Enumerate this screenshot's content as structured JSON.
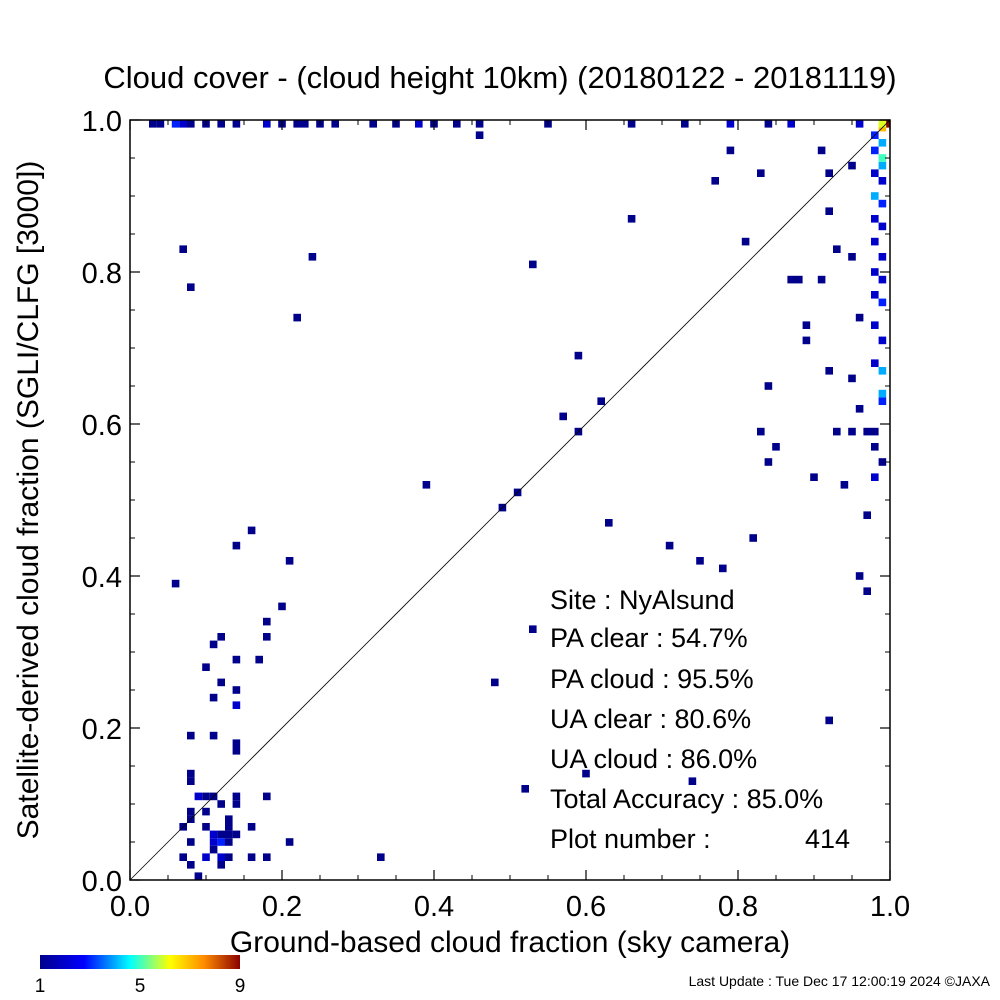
{
  "chart_data": {
    "type": "heatmap",
    "title": "Cloud cover - (cloud height 10km)  (20180122 - 20181119)",
    "xlabel": "Ground-based cloud fraction (sky camera)",
    "ylabel": "Satellite-derived cloud fraction (SGLI/CLFG [3000])",
    "xlim": [
      0,
      1
    ],
    "ylim": [
      0,
      1
    ],
    "x_ticks": [
      "0.0",
      "0.2",
      "0.4",
      "0.6",
      "0.8",
      "1.0"
    ],
    "y_ticks": [
      "0.0",
      "0.2",
      "0.4",
      "0.6",
      "0.8",
      "1.0"
    ],
    "reference_line": "y = x",
    "grid": false,
    "bin_size": 0.01,
    "colorbar": {
      "min": 1,
      "max": 9,
      "ticks": [
        "1",
        "5",
        "9"
      ],
      "colors": [
        "#00008b",
        "#0000ff",
        "#00ffff",
        "#ffff00",
        "#ff8c00",
        "#8b0000"
      ]
    },
    "points": [
      {
        "x": 0.06,
        "y": 0.39,
        "c": 1
      },
      {
        "x": 0.07,
        "y": 0.83,
        "c": 1
      },
      {
        "x": 0.08,
        "y": 0.78,
        "c": 1
      },
      {
        "x": 0.16,
        "y": 0.46,
        "c": 1
      },
      {
        "x": 0.14,
        "y": 0.44,
        "c": 1
      },
      {
        "x": 0.21,
        "y": 0.42,
        "c": 1
      },
      {
        "x": 0.2,
        "y": 0.36,
        "c": 1
      },
      {
        "x": 0.18,
        "y": 0.34,
        "c": 1
      },
      {
        "x": 0.18,
        "y": 0.32,
        "c": 1
      },
      {
        "x": 0.11,
        "y": 0.31,
        "c": 1
      },
      {
        "x": 0.12,
        "y": 0.32,
        "c": 1
      },
      {
        "x": 0.1,
        "y": 0.28,
        "c": 1
      },
      {
        "x": 0.14,
        "y": 0.29,
        "c": 1
      },
      {
        "x": 0.17,
        "y": 0.29,
        "c": 1
      },
      {
        "x": 0.12,
        "y": 0.26,
        "c": 1
      },
      {
        "x": 0.11,
        "y": 0.24,
        "c": 1
      },
      {
        "x": 0.14,
        "y": 0.25,
        "c": 1
      },
      {
        "x": 0.14,
        "y": 0.23,
        "c": 2
      },
      {
        "x": 0.08,
        "y": 0.19,
        "c": 1
      },
      {
        "x": 0.11,
        "y": 0.19,
        "c": 1
      },
      {
        "x": 0.14,
        "y": 0.18,
        "c": 1
      },
      {
        "x": 0.14,
        "y": 0.17,
        "c": 1
      },
      {
        "x": 0.08,
        "y": 0.14,
        "c": 1
      },
      {
        "x": 0.08,
        "y": 0.13,
        "c": 1
      },
      {
        "x": 0.09,
        "y": 0.11,
        "c": 2
      },
      {
        "x": 0.1,
        "y": 0.11,
        "c": 1
      },
      {
        "x": 0.11,
        "y": 0.11,
        "c": 1
      },
      {
        "x": 0.14,
        "y": 0.11,
        "c": 1
      },
      {
        "x": 0.14,
        "y": 0.1,
        "c": 1
      },
      {
        "x": 0.18,
        "y": 0.11,
        "c": 1
      },
      {
        "x": 0.08,
        "y": 0.09,
        "c": 1
      },
      {
        "x": 0.1,
        "y": 0.09,
        "c": 1
      },
      {
        "x": 0.12,
        "y": 0.1,
        "c": 1
      },
      {
        "x": 0.07,
        "y": 0.07,
        "c": 1
      },
      {
        "x": 0.08,
        "y": 0.08,
        "c": 1
      },
      {
        "x": 0.1,
        "y": 0.07,
        "c": 1
      },
      {
        "x": 0.13,
        "y": 0.08,
        "c": 1
      },
      {
        "x": 0.13,
        "y": 0.07,
        "c": 1
      },
      {
        "x": 0.11,
        "y": 0.06,
        "c": 2
      },
      {
        "x": 0.12,
        "y": 0.06,
        "c": 1
      },
      {
        "x": 0.13,
        "y": 0.06,
        "c": 1
      },
      {
        "x": 0.16,
        "y": 0.07,
        "c": 1
      },
      {
        "x": 0.08,
        "y": 0.05,
        "c": 1
      },
      {
        "x": 0.11,
        "y": 0.05,
        "c": 2
      },
      {
        "x": 0.12,
        "y": 0.05,
        "c": 3
      },
      {
        "x": 0.13,
        "y": 0.05,
        "c": 1
      },
      {
        "x": 0.14,
        "y": 0.06,
        "c": 1
      },
      {
        "x": 0.21,
        "y": 0.05,
        "c": 1
      },
      {
        "x": 0.07,
        "y": 0.03,
        "c": 1
      },
      {
        "x": 0.08,
        "y": 0.02,
        "c": 1
      },
      {
        "x": 0.1,
        "y": 0.03,
        "c": 2
      },
      {
        "x": 0.11,
        "y": 0.04,
        "c": 1
      },
      {
        "x": 0.12,
        "y": 0.03,
        "c": 2
      },
      {
        "x": 0.13,
        "y": 0.03,
        "c": 1
      },
      {
        "x": 0.16,
        "y": 0.03,
        "c": 1
      },
      {
        "x": 0.18,
        "y": 0.03,
        "c": 1
      },
      {
        "x": 0.12,
        "y": 0.02,
        "c": 1
      },
      {
        "x": 0.09,
        "y": 0.0,
        "c": 1
      },
      {
        "x": 0.33,
        "y": 0.03,
        "c": 1
      },
      {
        "x": 0.22,
        "y": 0.74,
        "c": 1
      },
      {
        "x": 0.24,
        "y": 0.82,
        "c": 1
      },
      {
        "x": 0.39,
        "y": 0.52,
        "c": 1
      },
      {
        "x": 0.49,
        "y": 0.49,
        "c": 1
      },
      {
        "x": 0.51,
        "y": 0.51,
        "c": 1
      },
      {
        "x": 0.53,
        "y": 0.81,
        "c": 1
      },
      {
        "x": 0.57,
        "y": 0.61,
        "c": 1
      },
      {
        "x": 0.59,
        "y": 0.69,
        "c": 1
      },
      {
        "x": 0.59,
        "y": 0.59,
        "c": 1
      },
      {
        "x": 0.62,
        "y": 0.63,
        "c": 1
      },
      {
        "x": 0.63,
        "y": 0.47,
        "c": 1
      },
      {
        "x": 0.66,
        "y": 0.87,
        "c": 1
      },
      {
        "x": 0.71,
        "y": 0.44,
        "c": 1
      },
      {
        "x": 0.75,
        "y": 0.42,
        "c": 1
      },
      {
        "x": 0.78,
        "y": 0.41,
        "c": 1
      },
      {
        "x": 0.82,
        "y": 0.45,
        "c": 1
      },
      {
        "x": 0.46,
        "y": 0.98,
        "c": 1
      },
      {
        "x": 0.53,
        "y": 0.33,
        "c": 1
      },
      {
        "x": 0.48,
        "y": 0.26,
        "c": 1
      },
      {
        "x": 0.52,
        "y": 0.12,
        "c": 1
      },
      {
        "x": 0.6,
        "y": 0.14,
        "c": 1
      },
      {
        "x": 0.74,
        "y": 0.13,
        "c": 1
      },
      {
        "x": 0.92,
        "y": 0.21,
        "c": 1
      },
      {
        "x": 0.77,
        "y": 0.92,
        "c": 1
      },
      {
        "x": 0.79,
        "y": 0.96,
        "c": 1
      },
      {
        "x": 0.81,
        "y": 0.84,
        "c": 1
      },
      {
        "x": 0.83,
        "y": 0.93,
        "c": 1
      },
      {
        "x": 0.84,
        "y": 0.65,
        "c": 1
      },
      {
        "x": 0.85,
        "y": 0.57,
        "c": 1
      },
      {
        "x": 0.84,
        "y": 0.55,
        "c": 1
      },
      {
        "x": 0.83,
        "y": 0.59,
        "c": 1
      },
      {
        "x": 0.87,
        "y": 0.79,
        "c": 1
      },
      {
        "x": 0.88,
        "y": 0.79,
        "c": 1
      },
      {
        "x": 0.89,
        "y": 0.73,
        "c": 1
      },
      {
        "x": 0.89,
        "y": 0.71,
        "c": 1
      },
      {
        "x": 0.9,
        "y": 0.53,
        "c": 1
      },
      {
        "x": 0.91,
        "y": 0.79,
        "c": 1
      },
      {
        "x": 0.92,
        "y": 0.88,
        "c": 1
      },
      {
        "x": 0.92,
        "y": 0.93,
        "c": 1
      },
      {
        "x": 0.93,
        "y": 0.83,
        "c": 1
      },
      {
        "x": 0.92,
        "y": 0.67,
        "c": 1
      },
      {
        "x": 0.93,
        "y": 0.59,
        "c": 1
      },
      {
        "x": 0.94,
        "y": 0.52,
        "c": 1
      },
      {
        "x": 0.95,
        "y": 0.59,
        "c": 1
      },
      {
        "x": 0.95,
        "y": 0.82,
        "c": 1
      },
      {
        "x": 0.95,
        "y": 0.66,
        "c": 1
      },
      {
        "x": 0.96,
        "y": 0.74,
        "c": 1
      },
      {
        "x": 0.96,
        "y": 0.62,
        "c": 1
      },
      {
        "x": 0.96,
        "y": 0.4,
        "c": 1
      },
      {
        "x": 0.97,
        "y": 0.38,
        "c": 1
      },
      {
        "x": 0.97,
        "y": 0.48,
        "c": 1
      },
      {
        "x": 0.91,
        "y": 0.96,
        "c": 1
      },
      {
        "x": 0.95,
        "y": 0.94,
        "c": 1
      },
      {
        "x": 0.98,
        "y": 0.53,
        "c": 2
      },
      {
        "x": 0.99,
        "y": 0.55,
        "c": 1
      },
      {
        "x": 0.98,
        "y": 0.57,
        "c": 1
      },
      {
        "x": 0.98,
        "y": 0.59,
        "c": 1
      },
      {
        "x": 0.97,
        "y": 0.59,
        "c": 1
      },
      {
        "x": 0.99,
        "y": 0.63,
        "c": 3
      },
      {
        "x": 0.99,
        "y": 0.64,
        "c": 4
      },
      {
        "x": 0.99,
        "y": 0.67,
        "c": 4
      },
      {
        "x": 0.98,
        "y": 0.68,
        "c": 2
      },
      {
        "x": 0.99,
        "y": 0.71,
        "c": 2
      },
      {
        "x": 0.98,
        "y": 0.73,
        "c": 2
      },
      {
        "x": 0.99,
        "y": 0.76,
        "c": 3
      },
      {
        "x": 0.98,
        "y": 0.77,
        "c": 2
      },
      {
        "x": 0.99,
        "y": 0.79,
        "c": 2
      },
      {
        "x": 0.98,
        "y": 0.8,
        "c": 2
      },
      {
        "x": 0.99,
        "y": 0.82,
        "c": 2
      },
      {
        "x": 0.98,
        "y": 0.84,
        "c": 2
      },
      {
        "x": 0.99,
        "y": 0.86,
        "c": 2
      },
      {
        "x": 0.98,
        "y": 0.87,
        "c": 2
      },
      {
        "x": 0.99,
        "y": 0.89,
        "c": 3
      },
      {
        "x": 0.98,
        "y": 0.9,
        "c": 4
      },
      {
        "x": 0.99,
        "y": 0.92,
        "c": 2
      },
      {
        "x": 0.98,
        "y": 0.93,
        "c": 2
      },
      {
        "x": 0.99,
        "y": 0.94,
        "c": 4
      },
      {
        "x": 0.99,
        "y": 0.95,
        "c": 5
      },
      {
        "x": 0.98,
        "y": 0.96,
        "c": 3
      },
      {
        "x": 0.99,
        "y": 0.97,
        "c": 4
      },
      {
        "x": 0.98,
        "y": 0.98,
        "c": 3
      },
      {
        "x": 0.99,
        "y": 0.99,
        "c": 7
      },
      {
        "x": 1.0,
        "y": 1.0,
        "c": 9
      },
      {
        "x": 0.99,
        "y": 1.0,
        "c": 6
      },
      {
        "x": 0.03,
        "y": 1.0,
        "c": 1
      },
      {
        "x": 0.04,
        "y": 1.0,
        "c": 1
      },
      {
        "x": 0.06,
        "y": 1.0,
        "c": 3
      },
      {
        "x": 0.07,
        "y": 1.0,
        "c": 2
      },
      {
        "x": 0.08,
        "y": 1.0,
        "c": 1
      },
      {
        "x": 0.1,
        "y": 1.0,
        "c": 1
      },
      {
        "x": 0.12,
        "y": 1.0,
        "c": 1
      },
      {
        "x": 0.14,
        "y": 1.0,
        "c": 1
      },
      {
        "x": 0.18,
        "y": 1.0,
        "c": 2
      },
      {
        "x": 0.2,
        "y": 1.0,
        "c": 1
      },
      {
        "x": 0.22,
        "y": 1.0,
        "c": 1
      },
      {
        "x": 0.23,
        "y": 1.0,
        "c": 1
      },
      {
        "x": 0.25,
        "y": 1.0,
        "c": 1
      },
      {
        "x": 0.27,
        "y": 1.0,
        "c": 1
      },
      {
        "x": 0.32,
        "y": 1.0,
        "c": 1
      },
      {
        "x": 0.35,
        "y": 1.0,
        "c": 1
      },
      {
        "x": 0.38,
        "y": 1.0,
        "c": 2
      },
      {
        "x": 0.4,
        "y": 1.0,
        "c": 1
      },
      {
        "x": 0.43,
        "y": 1.0,
        "c": 1
      },
      {
        "x": 0.46,
        "y": 1.0,
        "c": 1
      },
      {
        "x": 0.55,
        "y": 1.0,
        "c": 1
      },
      {
        "x": 0.66,
        "y": 1.0,
        "c": 1
      },
      {
        "x": 0.73,
        "y": 1.0,
        "c": 1
      },
      {
        "x": 0.79,
        "y": 1.0,
        "c": 2
      },
      {
        "x": 0.84,
        "y": 1.0,
        "c": 1
      },
      {
        "x": 0.87,
        "y": 1.0,
        "c": 2
      },
      {
        "x": 0.96,
        "y": 1.0,
        "c": 2
      }
    ]
  },
  "stats": {
    "site": "Site : NyAlsund",
    "pa_clear": "PA clear :  54.7%",
    "pa_cloud": "PA cloud :  95.5%",
    "ua_clear": "UA clear :  80.6%",
    "ua_cloud": "UA cloud :  86.0%",
    "total_accuracy": "Total Accuracy :  85.0%",
    "plot_number_label": "Plot number :",
    "plot_number_value": "414"
  },
  "footer": {
    "last_update": "Last Update : Tue Dec 17 12:00:19 2024  ©JAXA"
  }
}
